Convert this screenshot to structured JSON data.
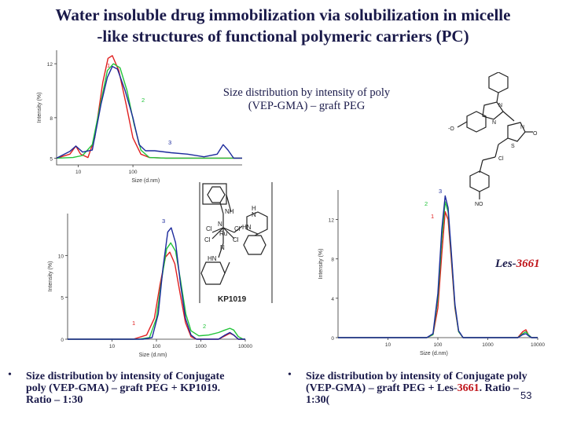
{
  "slide": {
    "title_line1": "Water insoluble drug immobilization via solubilization in micelle",
    "title_line2": "-like structures of functional polymeric carriers (PC)",
    "page_number": "53"
  },
  "annotations": {
    "plot1_title_line1": "Size distribution by intensity of poly",
    "plot1_title_line2": "(VEP-GMA) – graft PEG",
    "les_prefix": "Les-",
    "les_number": "3661",
    "kp_label": "KP1019"
  },
  "captions": {
    "left_line1": "Size distribution by intensity of Conjugate",
    "left_line2": "poly (VEP-GMA) – graft PEG + KP1019.",
    "left_line3": "Ratio – 1:30",
    "right_line1": "Size distribution by intensity of Conjugate poly",
    "right_line2_a": "(VEP-GMA) – graft PEG + Les-",
    "right_line2_b": "3661",
    "right_line2_c": ". Ratio –",
    "right_line3": "1:30("
  },
  "colors": {
    "red": "#e02020",
    "green": "#22c43a",
    "blue": "#1c2a9c",
    "text": "#1a1a4a"
  },
  "chart_data": [
    {
      "type": "line",
      "ylabel": "Intensity (%)",
      "xlabel": "Size (d.nm)",
      "x_scale": "log",
      "xlim": [
        4,
        10000
      ],
      "ylim": [
        4.5,
        13
      ],
      "y_ticks": [
        "12",
        "8",
        "5"
      ],
      "x_ticks": [
        "10",
        "100"
      ],
      "series": [
        {
          "name": "1",
          "color": "red",
          "points": [
            [
              4,
              5.0
            ],
            [
              7,
              5.3
            ],
            [
              9,
              5.9
            ],
            [
              11,
              5.3
            ],
            [
              15,
              5.05
            ],
            [
              20,
              6.5
            ],
            [
              28,
              10.6
            ],
            [
              35,
              12.4
            ],
            [
              42,
              12.6
            ],
            [
              55,
              11.5
            ],
            [
              75,
              9.0
            ],
            [
              100,
              6.5
            ],
            [
              140,
              5.3
            ],
            [
              200,
              5.05
            ],
            [
              400,
              5.0
            ],
            [
              10000,
              5.0
            ]
          ]
        },
        {
          "name": "2",
          "color": "green",
          "points": [
            [
              4,
              5.0
            ],
            [
              8,
              5.05
            ],
            [
              12,
              5.2
            ],
            [
              18,
              6.0
            ],
            [
              26,
              9.2
            ],
            [
              34,
              11.5
            ],
            [
              44,
              12.0
            ],
            [
              58,
              11.7
            ],
            [
              78,
              10.0
            ],
            [
              105,
              7.5
            ],
            [
              140,
              5.6
            ],
            [
              200,
              5.05
            ],
            [
              400,
              5.0
            ],
            [
              10000,
              5.0
            ]
          ]
        },
        {
          "name": "3",
          "color": "blue",
          "points": [
            [
              4,
              5.0
            ],
            [
              7,
              5.5
            ],
            [
              9,
              5.9
            ],
            [
              12,
              5.45
            ],
            [
              18,
              5.6
            ],
            [
              26,
              9.0
            ],
            [
              34,
              11.0
            ],
            [
              42,
              11.8
            ],
            [
              52,
              11.6
            ],
            [
              72,
              10.0
            ],
            [
              100,
              8.0
            ],
            [
              130,
              6.0
            ],
            [
              170,
              5.55
            ],
            [
              250,
              5.55
            ],
            [
              500,
              5.4
            ],
            [
              1000,
              5.3
            ],
            [
              2000,
              5.1
            ],
            [
              3500,
              5.3
            ],
            [
              4500,
              6.0
            ],
            [
              5500,
              5.6
            ],
            [
              7000,
              5.0
            ],
            [
              10000,
              5.0
            ]
          ]
        }
      ]
    },
    {
      "type": "line",
      "ylabel": "Intensity (%)",
      "xlabel": "Size (d.nm)",
      "x_scale": "log",
      "xlim": [
        1,
        10000
      ],
      "ylim": [
        0,
        15
      ],
      "y_ticks": [
        "10",
        "5",
        "0"
      ],
      "x_ticks": [
        "10",
        "100",
        "1000",
        "10000"
      ],
      "series": [
        {
          "name": "1",
          "color": "red",
          "points": [
            [
              1,
              0
            ],
            [
              30,
              0
            ],
            [
              60,
              0.5
            ],
            [
              90,
              2.5
            ],
            [
              120,
              6.5
            ],
            [
              160,
              9.8
            ],
            [
              200,
              10.4
            ],
            [
              260,
              9.0
            ],
            [
              340,
              5.5
            ],
            [
              450,
              2.0
            ],
            [
              600,
              0.3
            ],
            [
              800,
              0
            ],
            [
              2500,
              0
            ],
            [
              3500,
              0.4
            ],
            [
              4500,
              0.7
            ],
            [
              5500,
              0.5
            ],
            [
              7000,
              0
            ],
            [
              10000,
              0
            ]
          ]
        },
        {
          "name": "2",
          "color": "green",
          "points": [
            [
              1,
              0
            ],
            [
              40,
              0
            ],
            [
              70,
              0.2
            ],
            [
              100,
              2.5
            ],
            [
              130,
              7.0
            ],
            [
              170,
              10.8
            ],
            [
              210,
              11.5
            ],
            [
              270,
              10.5
            ],
            [
              350,
              7.0
            ],
            [
              460,
              3.0
            ],
            [
              600,
              1.0
            ],
            [
              900,
              0.4
            ],
            [
              1500,
              0.5
            ],
            [
              2500,
              0.8
            ],
            [
              3500,
              1.1
            ],
            [
              4500,
              1.3
            ],
            [
              5500,
              1.1
            ],
            [
              7000,
              0.3
            ],
            [
              9000,
              0
            ],
            [
              10000,
              0
            ]
          ]
        },
        {
          "name": "3",
          "color": "blue",
          "points": [
            [
              1,
              0
            ],
            [
              50,
              0
            ],
            [
              80,
              0.2
            ],
            [
              110,
              3.0
            ],
            [
              140,
              8.5
            ],
            [
              180,
              12.8
            ],
            [
              215,
              13.3
            ],
            [
              270,
              11.5
            ],
            [
              350,
              6.5
            ],
            [
              450,
              2.5
            ],
            [
              600,
              0.5
            ],
            [
              800,
              0
            ],
            [
              2500,
              0
            ],
            [
              3500,
              0.5
            ],
            [
              4500,
              0.8
            ],
            [
              5500,
              0.5
            ],
            [
              7000,
              0
            ],
            [
              10000,
              0
            ]
          ]
        }
      ]
    },
    {
      "type": "line",
      "ylabel": "Intensity (%)",
      "xlabel": "Size (d.nm)",
      "x_scale": "log",
      "xlim": [
        1,
        10000
      ],
      "ylim": [
        0,
        15
      ],
      "y_ticks": [
        "12",
        "8",
        "4",
        "0"
      ],
      "x_ticks": [
        "10",
        "100",
        "1000",
        "10000"
      ],
      "series": [
        {
          "name": "1",
          "color": "red",
          "points": [
            [
              1,
              0
            ],
            [
              60,
              0
            ],
            [
              80,
              0.3
            ],
            [
              100,
              3.0
            ],
            [
              120,
              8.5
            ],
            [
              140,
              12.8
            ],
            [
              160,
              12.0
            ],
            [
              185,
              8.0
            ],
            [
              220,
              3.0
            ],
            [
              260,
              0.6
            ],
            [
              320,
              0
            ],
            [
              4000,
              0
            ],
            [
              5000,
              0.6
            ],
            [
              5800,
              0.8
            ],
            [
              6500,
              0.3
            ],
            [
              7500,
              0
            ],
            [
              10000,
              0
            ]
          ]
        },
        {
          "name": "2",
          "color": "green",
          "points": [
            [
              1,
              0
            ],
            [
              60,
              0
            ],
            [
              80,
              0.3
            ],
            [
              100,
              4.0
            ],
            [
              120,
              10.0
            ],
            [
              140,
              13.8
            ],
            [
              160,
              12.8
            ],
            [
              185,
              8.5
            ],
            [
              220,
              3.2
            ],
            [
              260,
              0.6
            ],
            [
              320,
              0
            ],
            [
              4000,
              0
            ],
            [
              5000,
              0.4
            ],
            [
              5800,
              0.6
            ],
            [
              6500,
              0.3
            ],
            [
              7500,
              0
            ],
            [
              10000,
              0
            ]
          ]
        },
        {
          "name": "3",
          "color": "blue",
          "points": [
            [
              1,
              0
            ],
            [
              60,
              0
            ],
            [
              80,
              0.4
            ],
            [
              100,
              4.5
            ],
            [
              120,
              11.0
            ],
            [
              140,
              14.4
            ],
            [
              160,
              13.2
            ],
            [
              185,
              8.8
            ],
            [
              220,
              3.4
            ],
            [
              260,
              0.7
            ],
            [
              320,
              0
            ],
            [
              4000,
              0
            ],
            [
              5000,
              0.3
            ],
            [
              5800,
              0.4
            ],
            [
              6500,
              0.2
            ],
            [
              7500,
              0
            ],
            [
              10000,
              0
            ]
          ]
        }
      ]
    }
  ]
}
